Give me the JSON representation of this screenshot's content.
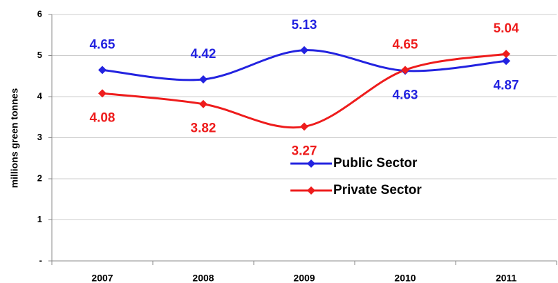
{
  "chart_data": {
    "type": "line",
    "y_label": "millions green tonnes",
    "categories": [
      "2007",
      "2008",
      "2009",
      "2010",
      "2011"
    ],
    "series": [
      {
        "name": "Public Sector",
        "color": "#2323e0",
        "values": [
          4.65,
          4.42,
          5.13,
          4.63,
          4.87
        ]
      },
      {
        "name": "Private Sector",
        "color": "#ee1c1c",
        "values": [
          4.08,
          3.82,
          3.27,
          4.65,
          5.04
        ]
      }
    ],
    "ylim": [
      0,
      6
    ],
    "yticks": [
      {
        "value": 0,
        "label": "-"
      },
      1,
      2,
      3,
      4,
      5,
      6
    ],
    "grid": true,
    "smooth": true,
    "legend": "center"
  }
}
